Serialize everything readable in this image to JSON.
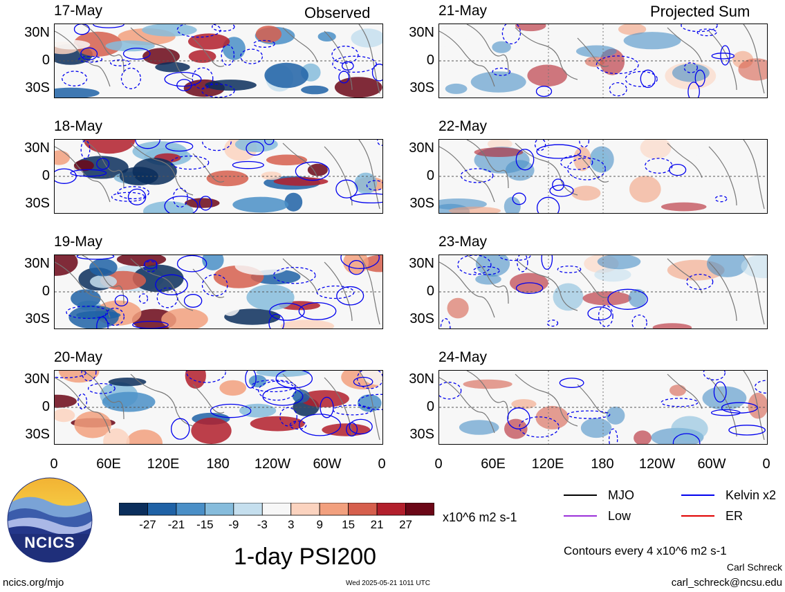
{
  "left_column_title": "Observed",
  "right_column_title": "Projected Sum",
  "observed_dates": [
    "17-May",
    "18-May",
    "19-May",
    "20-May"
  ],
  "projected_dates": [
    "21-May",
    "22-May",
    "23-May",
    "24-May"
  ],
  "lat_labels": [
    "30N",
    "0",
    "30S"
  ],
  "lon_labels": [
    "0",
    "60E",
    "120E",
    "180",
    "120W",
    "60W",
    "0"
  ],
  "colorbar": {
    "labels": [
      "-27",
      "-21",
      "-15",
      "-9",
      "-3",
      "3",
      "9",
      "15",
      "21",
      "27"
    ],
    "colors": [
      "#0b2e5c",
      "#1f62a6",
      "#4a8fc7",
      "#86bcdc",
      "#c5dfee",
      "#f7f7f7",
      "#fbd3bf",
      "#f2a07e",
      "#d65f4d",
      "#b21f2c",
      "#6b0717"
    ],
    "units": "x10^6 m2 s-1"
  },
  "legend": [
    {
      "name": "MJO",
      "color": "#000000"
    },
    {
      "name": "Kelvin x2",
      "color": "#0000ee"
    },
    {
      "name": "Low",
      "color": "#9b30d9"
    },
    {
      "name": "ER",
      "color": "#e00000"
    }
  ],
  "contour_note": "Contours every 4 x10^6 m2 s-1",
  "main_title": "1-day PSI200",
  "logo_text": "NCICS",
  "footer": {
    "website": "ncics.org/mjo",
    "timestamp": "Wed 2025-05-21 1011 UTC",
    "author": "Carl Schreck",
    "email": "carl_schreck@ncsu.edu"
  }
}
